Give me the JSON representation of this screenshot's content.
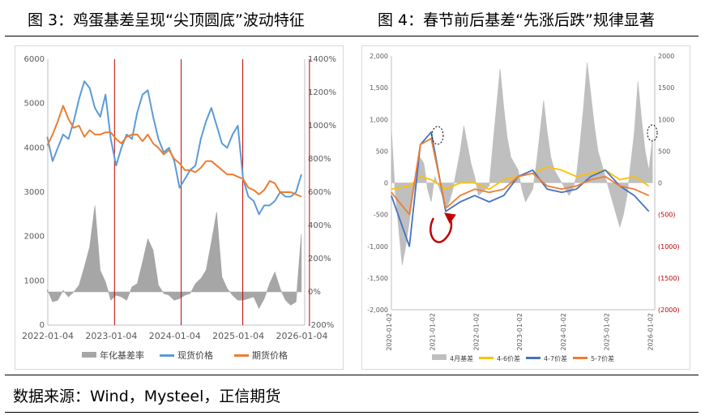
{
  "figure_titles": {
    "left": "图 3：鸡蛋基差呈现“尖顶圆底”波动特征",
    "right": "图 4：春节前后基差“先涨后跌”规律显著"
  },
  "source": "数据来源：Wind，Mysteel，正信期货",
  "chart_data": [
    {
      "type": "line",
      "title": "图 3：鸡蛋基差呈现“尖顶圆底”波动特征",
      "x_ticks": [
        "2022-01-04",
        "2023-01-04",
        "2024-01-04",
        "2025-01-04",
        "2026-01-04"
      ],
      "y_left": {
        "ticks": [
          "0",
          "1000",
          "2000",
          "3000",
          "4000",
          "5000",
          "6000"
        ],
        "ylim": [
          0,
          6000
        ]
      },
      "y_right": {
        "ticks": [
          "-200%",
          "0%",
          "200%",
          "400%",
          "600%",
          "800%",
          "1000%",
          "1200%",
          "1400%"
        ],
        "ylim": [
          -200,
          1400
        ]
      },
      "legend": {
        "position": "bottom",
        "entries": [
          "年化基差率",
          "现货价格",
          "期货价格"
        ]
      },
      "colors": {
        "basis": "#a6a6a6",
        "spot": "#5b9bd5",
        "futures": "#ed7d31",
        "markers": "#c00000"
      },
      "vertical_markers": [
        "2023-01-22",
        "2024-02-10",
        "2025-01-29",
        "2026-02-17"
      ],
      "series": [
        {
          "name": "现货价格",
          "axis": "left",
          "x": [
            "2022-01",
            "2022-02",
            "2022-03",
            "2022-04",
            "2022-05",
            "2022-06",
            "2022-07",
            "2022-08",
            "2022-09",
            "2022-10",
            "2022-11",
            "2022-12",
            "2023-01",
            "2023-02",
            "2023-03",
            "2023-04",
            "2023-05",
            "2023-06",
            "2023-07",
            "2023-08",
            "2023-09",
            "2023-10",
            "2023-11",
            "2023-12",
            "2024-01",
            "2024-02",
            "2024-03",
            "2024-04",
            "2024-05",
            "2024-06",
            "2024-07",
            "2024-08",
            "2024-09",
            "2024-10",
            "2024-11",
            "2024-12",
            "2025-01",
            "2025-02",
            "2025-03",
            "2025-04",
            "2025-05",
            "2025-06",
            "2025-07",
            "2025-08",
            "2025-09",
            "2025-10",
            "2025-11",
            "2025-12",
            "2026-01"
          ],
          "values": [
            4250,
            3700,
            4000,
            4300,
            4200,
            4600,
            5100,
            5500,
            5350,
            4900,
            4700,
            5200,
            4200,
            3600,
            4000,
            4300,
            4200,
            4800,
            5200,
            5300,
            4700,
            4200,
            3900,
            4000,
            3700,
            3100,
            3300,
            3500,
            3600,
            4200,
            4600,
            4900,
            4500,
            4100,
            4000,
            4300,
            4500,
            3300,
            2900,
            2800,
            2500,
            2700,
            2700,
            2800,
            3000,
            2900,
            2900,
            3000,
            3400
          ]
        },
        {
          "name": "期货价格",
          "axis": "left",
          "x": [
            "2022-01",
            "2022-02",
            "2022-03",
            "2022-04",
            "2022-05",
            "2022-06",
            "2022-07",
            "2022-08",
            "2022-09",
            "2022-10",
            "2022-11",
            "2022-12",
            "2023-01",
            "2023-02",
            "2023-03",
            "2023-04",
            "2023-05",
            "2023-06",
            "2023-07",
            "2023-08",
            "2023-09",
            "2023-10",
            "2023-11",
            "2023-12",
            "2024-01",
            "2024-02",
            "2024-03",
            "2024-04",
            "2024-05",
            "2024-06",
            "2024-07",
            "2024-08",
            "2024-09",
            "2024-10",
            "2024-11",
            "2024-12",
            "2025-01",
            "2025-02",
            "2025-03",
            "2025-04",
            "2025-05",
            "2025-06",
            "2025-07",
            "2025-08",
            "2025-09",
            "2025-10",
            "2025-11",
            "2025-12",
            "2026-01"
          ],
          "values": [
            4050,
            4300,
            4600,
            4950,
            4650,
            4450,
            4500,
            4250,
            4400,
            4300,
            4300,
            4350,
            4350,
            4200,
            4100,
            4250,
            4300,
            4300,
            4150,
            4300,
            4100,
            4000,
            3850,
            3950,
            3750,
            3650,
            3500,
            3500,
            3450,
            3550,
            3700,
            3700,
            3600,
            3500,
            3400,
            3400,
            3350,
            3300,
            3100,
            3050,
            2950,
            3050,
            3250,
            3200,
            3000,
            3000,
            3000,
            2950,
            2900
          ]
        },
        {
          "name": "年化基差率",
          "axis": "right",
          "style": "area",
          "x": [
            "2022-01",
            "2022-02",
            "2022-03",
            "2022-04",
            "2022-05",
            "2022-06",
            "2022-07",
            "2022-08",
            "2022-09",
            "2022-10",
            "2022-11",
            "2022-12",
            "2023-01",
            "2023-02",
            "2023-03",
            "2023-04",
            "2023-05",
            "2023-06",
            "2023-07",
            "2023-08",
            "2023-09",
            "2023-10",
            "2023-11",
            "2023-12",
            "2024-01",
            "2024-02",
            "2024-03",
            "2024-04",
            "2024-05",
            "2024-06",
            "2024-07",
            "2024-08",
            "2024-09",
            "2024-10",
            "2024-11",
            "2024-12",
            "2025-01",
            "2025-02",
            "2025-03",
            "2025-04",
            "2025-05",
            "2025-06",
            "2025-07",
            "2025-08",
            "2025-09",
            "2025-10",
            "2025-11",
            "2025-12",
            "2026-01"
          ],
          "values": [
            15,
            -60,
            -50,
            10,
            -30,
            0,
            40,
            150,
            270,
            520,
            130,
            60,
            -50,
            -20,
            -30,
            -50,
            30,
            50,
            180,
            320,
            250,
            40,
            -10,
            -20,
            -50,
            -40,
            -20,
            -10,
            50,
            80,
            130,
            300,
            480,
            90,
            20,
            -20,
            -50,
            -50,
            -40,
            -30,
            -100,
            -40,
            50,
            120,
            20,
            -50,
            -80,
            -60,
            350
          ]
        }
      ]
    },
    {
      "type": "line",
      "title": "图 4：春节前后基差“先涨后跌”规律显著",
      "x_ticks": [
        "2020-01-02",
        "2021-01-02",
        "2022-01-02",
        "2023-01-02",
        "2024-01-02",
        "2025-01-02",
        "2026-01-02"
      ],
      "y_left": {
        "ticks": [
          "-2,000",
          "-1,500",
          "-1,000",
          "-500",
          "0",
          "500",
          "1,000",
          "1,500",
          "2,000"
        ],
        "ylim": [
          -2000,
          2000
        ]
      },
      "y_right": {
        "ticks": [
          "(2000)",
          "(1500)",
          "(1000)",
          "(500)",
          "0",
          "500",
          "1000",
          "1500",
          "2000"
        ],
        "ylim": [
          -2000,
          2000
        ]
      },
      "legend": {
        "position": "bottom",
        "entries": [
          "4月基差",
          "4-6价差",
          "4-7价差",
          "5-7价差"
        ]
      },
      "colors": {
        "basis": "#bfbfbf",
        "s46": "#ffc000",
        "s47": "#4472c4",
        "s57": "#ed7d31",
        "negative_labels": "#c00000"
      },
      "series": [
        {
          "name": "4月基差",
          "axis": "right",
          "style": "area",
          "x": [
            "2020-01",
            "2020-02",
            "2020-03",
            "2020-04",
            "2020-05",
            "2020-06",
            "2020-07",
            "2020-08",
            "2020-09",
            "2020-10",
            "2020-11",
            "2020-12",
            "2021-01",
            "2021-02",
            "2021-03",
            "2021-04",
            "2021-05",
            "2021-06",
            "2021-07",
            "2021-08",
            "2021-09",
            "2021-10",
            "2021-11",
            "2021-12",
            "2022-01",
            "2022-02",
            "2022-03",
            "2022-04",
            "2022-05",
            "2022-06",
            "2022-07",
            "2022-08",
            "2022-09",
            "2022-10",
            "2022-11",
            "2022-12",
            "2023-01",
            "2023-02",
            "2023-03",
            "2023-04",
            "2023-05",
            "2023-06",
            "2023-07",
            "2023-08",
            "2023-09",
            "2023-10",
            "2023-11",
            "2023-12",
            "2024-01",
            "2024-02",
            "2024-03",
            "2024-04",
            "2024-05",
            "2024-06",
            "2024-07",
            "2024-08",
            "2024-09",
            "2024-10",
            "2024-11",
            "2024-12",
            "2025-01",
            "2025-02",
            "2025-03",
            "2025-04",
            "2025-05",
            "2025-06",
            "2025-07",
            "2025-08",
            "2025-09",
            "2025-10",
            "2025-11",
            "2025-12",
            "2026-01"
          ],
          "values": [
            900,
            -100,
            -700,
            -1300,
            -1000,
            -600,
            -200,
            100,
            400,
            300,
            -100,
            -300,
            100,
            -50,
            -200,
            -400,
            -300,
            -100,
            200,
            500,
            900,
            600,
            300,
            100,
            -200,
            -150,
            -100,
            -50,
            600,
            1200,
            1800,
            1200,
            700,
            400,
            300,
            200,
            -100,
            -300,
            -200,
            -100,
            300,
            800,
            1300,
            800,
            400,
            200,
            100,
            0,
            -100,
            -200,
            -100,
            100,
            600,
            1200,
            1900,
            1400,
            900,
            500,
            300,
            100,
            -100,
            -300,
            -500,
            -700,
            -500,
            -200,
            300,
            800,
            1600,
            1000,
            500,
            200,
            700
          ]
        },
        {
          "name": "4-6价差",
          "axis": "left",
          "x": [
            "2020-01",
            "2020-06",
            "2020-09",
            "2020-12",
            "2021-04",
            "2021-08",
            "2021-12",
            "2022-04",
            "2022-08",
            "2022-12",
            "2023-04",
            "2023-08",
            "2023-12",
            "2024-04",
            "2024-08",
            "2024-12",
            "2025-04",
            "2025-08",
            "2025-12"
          ],
          "values": [
            -100,
            -50,
            100,
            50,
            -100,
            0,
            0,
            -100,
            50,
            100,
            150,
            250,
            200,
            100,
            150,
            200,
            50,
            100,
            -50
          ]
        },
        {
          "name": "4-7价差",
          "axis": "left",
          "x": [
            "2020-01",
            "2020-06",
            "2020-09",
            "2020-12",
            "2021-04",
            "2021-08",
            "2021-12",
            "2022-04",
            "2022-08",
            "2022-12",
            "2023-04",
            "2023-08",
            "2023-12",
            "2024-04",
            "2024-08",
            "2024-12",
            "2025-04",
            "2025-08",
            "2025-12"
          ],
          "values": [
            -200,
            -1000,
            600,
            800,
            -450,
            -300,
            -200,
            -300,
            -200,
            100,
            200,
            -100,
            -150,
            -100,
            100,
            200,
            -50,
            -200,
            -450
          ]
        },
        {
          "name": "5-7价差",
          "axis": "left",
          "x": [
            "2020-01",
            "2020-06",
            "2020-09",
            "2020-12",
            "2021-04",
            "2021-08",
            "2021-12",
            "2022-04",
            "2022-08",
            "2022-12",
            "2023-04",
            "2023-08",
            "2023-12",
            "2024-04",
            "2024-08",
            "2024-12",
            "2025-04",
            "2025-08",
            "2025-12"
          ],
          "values": [
            -150,
            -500,
            600,
            700,
            -400,
            -200,
            -100,
            -150,
            -100,
            100,
            150,
            -50,
            -100,
            -50,
            50,
            100,
            -50,
            -100,
            -200
          ]
        }
      ]
    }
  ]
}
